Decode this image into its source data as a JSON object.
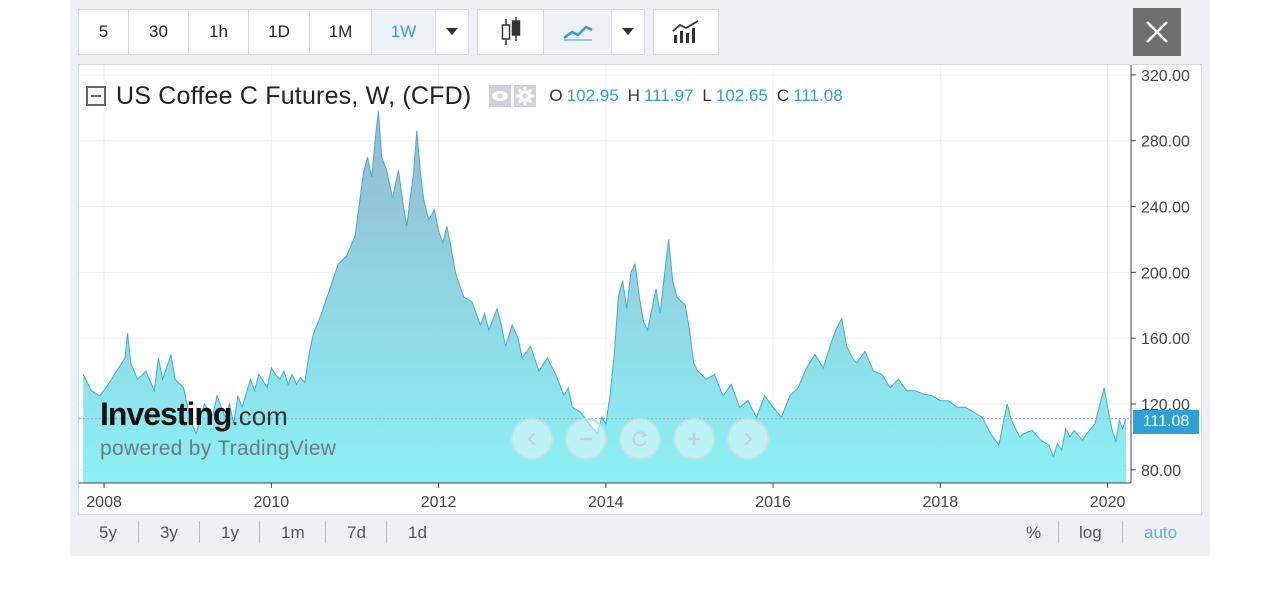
{
  "toolbar": {
    "intervals": [
      "5",
      "30",
      "1h",
      "1D",
      "1M",
      "1W"
    ],
    "active_interval": "1W"
  },
  "legend": {
    "title": "US Coffee C Futures, W, (CFD)",
    "open_label": "O",
    "open": "102.95",
    "high_label": "H",
    "high": "111.97",
    "low_label": "L",
    "low": "102.65",
    "close_label": "C",
    "close": "111.08"
  },
  "watermark": {
    "logo_main": "Investing",
    "logo_suffix": ".com",
    "subtitle": "powered by TradingView"
  },
  "price_tag": "111.08",
  "bottom": {
    "ranges": [
      "5y",
      "3y",
      "1y",
      "1m",
      "7d",
      "1d"
    ],
    "percent": "%",
    "log": "log",
    "auto": "auto"
  },
  "colors": {
    "accent": "#2f9fd8",
    "area_top": "#8fc0d1",
    "area_bottom": "#85f0f5",
    "line": "#4aa9cf"
  },
  "chart_data": {
    "type": "area",
    "title": "US Coffee C Futures, W, (CFD)",
    "xlabel": "",
    "ylabel": "",
    "x_ticks": [
      "2008",
      "2010",
      "2012",
      "2014",
      "2016",
      "2018",
      "2020"
    ],
    "y_ticks": [
      "80.00",
      "120.00",
      "160.00",
      "200.00",
      "240.00",
      "280.00",
      "320.00"
    ],
    "ylim": [
      72,
      326
    ],
    "xlim": [
      2007.7,
      2020.28
    ],
    "grid": true,
    "last_value": 111.08,
    "series": [
      {
        "points": [
          [
            2007.75,
            138
          ],
          [
            2007.85,
            128
          ],
          [
            2007.95,
            125
          ],
          [
            2008.05,
            132
          ],
          [
            2008.15,
            140
          ],
          [
            2008.25,
            148
          ],
          [
            2008.28,
            163
          ],
          [
            2008.32,
            145
          ],
          [
            2008.4,
            135
          ],
          [
            2008.5,
            140
          ],
          [
            2008.6,
            128
          ],
          [
            2008.65,
            148
          ],
          [
            2008.7,
            135
          ],
          [
            2008.8,
            150
          ],
          [
            2008.85,
            135
          ],
          [
            2008.95,
            130
          ],
          [
            2009.0,
            118
          ],
          [
            2009.05,
            108
          ],
          [
            2009.1,
            102
          ],
          [
            2009.2,
            120
          ],
          [
            2009.3,
            113
          ],
          [
            2009.35,
            125
          ],
          [
            2009.45,
            112
          ],
          [
            2009.5,
            120
          ],
          [
            2009.55,
            108
          ],
          [
            2009.6,
            125
          ],
          [
            2009.65,
            118
          ],
          [
            2009.75,
            135
          ],
          [
            2009.8,
            128
          ],
          [
            2009.85,
            138
          ],
          [
            2009.95,
            130
          ],
          [
            2010.0,
            142
          ],
          [
            2010.05,
            138
          ],
          [
            2010.1,
            135
          ],
          [
            2010.15,
            140
          ],
          [
            2010.2,
            132
          ],
          [
            2010.25,
            138
          ],
          [
            2010.3,
            132
          ],
          [
            2010.35,
            136
          ],
          [
            2010.4,
            133
          ],
          [
            2010.45,
            150
          ],
          [
            2010.5,
            162
          ],
          [
            2010.6,
            175
          ],
          [
            2010.7,
            190
          ],
          [
            2010.8,
            205
          ],
          [
            2010.9,
            210
          ],
          [
            2011.0,
            222
          ],
          [
            2011.05,
            240
          ],
          [
            2011.1,
            260
          ],
          [
            2011.15,
            270
          ],
          [
            2011.2,
            258
          ],
          [
            2011.25,
            285
          ],
          [
            2011.28,
            298
          ],
          [
            2011.32,
            270
          ],
          [
            2011.38,
            262
          ],
          [
            2011.45,
            245
          ],
          [
            2011.52,
            262
          ],
          [
            2011.58,
            240
          ],
          [
            2011.62,
            228
          ],
          [
            2011.66,
            245
          ],
          [
            2011.7,
            260
          ],
          [
            2011.74,
            286
          ],
          [
            2011.78,
            262
          ],
          [
            2011.82,
            245
          ],
          [
            2011.88,
            232
          ],
          [
            2011.95,
            238
          ],
          [
            2012.0,
            225
          ],
          [
            2012.05,
            218
          ],
          [
            2012.1,
            228
          ],
          [
            2012.15,
            215
          ],
          [
            2012.2,
            200
          ],
          [
            2012.3,
            185
          ],
          [
            2012.4,
            182
          ],
          [
            2012.5,
            168
          ],
          [
            2012.55,
            175
          ],
          [
            2012.6,
            165
          ],
          [
            2012.7,
            178
          ],
          [
            2012.75,
            168
          ],
          [
            2012.8,
            155
          ],
          [
            2012.88,
            168
          ],
          [
            2012.95,
            160
          ],
          [
            2013.0,
            148
          ],
          [
            2013.1,
            155
          ],
          [
            2013.2,
            140
          ],
          [
            2013.3,
            148
          ],
          [
            2013.4,
            138
          ],
          [
            2013.5,
            125
          ],
          [
            2013.55,
            130
          ],
          [
            2013.6,
            118
          ],
          [
            2013.7,
            115
          ],
          [
            2013.8,
            108
          ],
          [
            2013.9,
            102
          ],
          [
            2013.95,
            112
          ],
          [
            2014.0,
            108
          ],
          [
            2014.05,
            125
          ],
          [
            2014.1,
            150
          ],
          [
            2014.15,
            185
          ],
          [
            2014.2,
            195
          ],
          [
            2014.25,
            178
          ],
          [
            2014.3,
            200
          ],
          [
            2014.35,
            205
          ],
          [
            2014.4,
            185
          ],
          [
            2014.45,
            170
          ],
          [
            2014.5,
            165
          ],
          [
            2014.6,
            190
          ],
          [
            2014.65,
            175
          ],
          [
            2014.7,
            198
          ],
          [
            2014.75,
            220
          ],
          [
            2014.8,
            195
          ],
          [
            2014.85,
            185
          ],
          [
            2014.95,
            180
          ],
          [
            2015.0,
            165
          ],
          [
            2015.05,
            145
          ],
          [
            2015.1,
            140
          ],
          [
            2015.2,
            135
          ],
          [
            2015.3,
            138
          ],
          [
            2015.4,
            125
          ],
          [
            2015.5,
            132
          ],
          [
            2015.6,
            118
          ],
          [
            2015.7,
            122
          ],
          [
            2015.8,
            112
          ],
          [
            2015.9,
            125
          ],
          [
            2016.0,
            118
          ],
          [
            2016.1,
            112
          ],
          [
            2016.2,
            125
          ],
          [
            2016.3,
            130
          ],
          [
            2016.4,
            142
          ],
          [
            2016.5,
            150
          ],
          [
            2016.6,
            142
          ],
          [
            2016.7,
            158
          ],
          [
            2016.75,
            165
          ],
          [
            2016.82,
            172
          ],
          [
            2016.88,
            155
          ],
          [
            2016.95,
            148
          ],
          [
            2017.0,
            145
          ],
          [
            2017.1,
            152
          ],
          [
            2017.2,
            140
          ],
          [
            2017.3,
            138
          ],
          [
            2017.4,
            130
          ],
          [
            2017.5,
            135
          ],
          [
            2017.6,
            128
          ],
          [
            2017.7,
            128
          ],
          [
            2017.8,
            126
          ],
          [
            2017.9,
            125
          ],
          [
            2018.0,
            122
          ],
          [
            2018.1,
            122
          ],
          [
            2018.2,
            118
          ],
          [
            2018.3,
            118
          ],
          [
            2018.4,
            115
          ],
          [
            2018.5,
            112
          ],
          [
            2018.6,
            102
          ],
          [
            2018.7,
            95
          ],
          [
            2018.75,
            108
          ],
          [
            2018.8,
            120
          ],
          [
            2018.85,
            110
          ],
          [
            2018.95,
            100
          ],
          [
            2019.0,
            102
          ],
          [
            2019.1,
            104
          ],
          [
            2019.2,
            98
          ],
          [
            2019.3,
            95
          ],
          [
            2019.35,
            88
          ],
          [
            2019.4,
            96
          ],
          [
            2019.45,
            92
          ],
          [
            2019.5,
            105
          ],
          [
            2019.55,
            100
          ],
          [
            2019.6,
            104
          ],
          [
            2019.7,
            98
          ],
          [
            2019.75,
            102
          ],
          [
            2019.85,
            108
          ],
          [
            2019.92,
            122
          ],
          [
            2019.96,
            130
          ],
          [
            2020.0,
            118
          ],
          [
            2020.05,
            105
          ],
          [
            2020.1,
            97
          ],
          [
            2020.14,
            110
          ],
          [
            2020.18,
            105
          ],
          [
            2020.22,
            111
          ]
        ]
      }
    ]
  }
}
